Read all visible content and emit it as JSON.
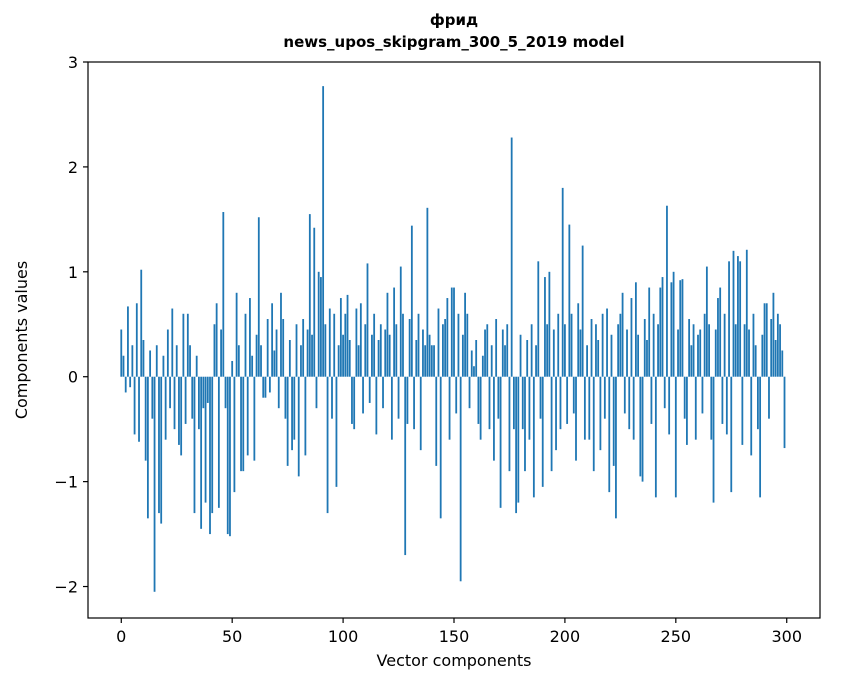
{
  "figure": {
    "background": "#ffffff",
    "frame_color": "#000000"
  },
  "chart_data": {
    "type": "bar",
    "title": "фрид",
    "subtitle": "news_upos_skipgram_300_5_2019 model",
    "xlabel": "Vector components",
    "ylabel": "Components values",
    "bar_color": "#1f77b4",
    "grid": false,
    "legend": null,
    "xlim": [
      -15,
      315
    ],
    "ylim": [
      -2.3,
      3.0
    ],
    "xticks": {
      "values": [
        0,
        50,
        100,
        150,
        200,
        250,
        300
      ],
      "labels": [
        "0",
        "50",
        "100",
        "150",
        "200",
        "250",
        "300"
      ]
    },
    "yticks": {
      "values": [
        -2,
        -1,
        0,
        1,
        2,
        3
      ],
      "labels": [
        "−2",
        "−1",
        "0",
        "1",
        "2",
        "3"
      ]
    },
    "x_start": 0,
    "values": [
      0.45,
      0.2,
      -0.15,
      0.67,
      -0.1,
      0.3,
      -0.55,
      0.7,
      -0.62,
      1.02,
      0.35,
      -0.8,
      -1.35,
      0.25,
      -0.4,
      -2.05,
      0.3,
      -1.3,
      -1.4,
      0.2,
      -0.6,
      0.45,
      -0.3,
      0.65,
      -0.5,
      0.3,
      -0.65,
      -0.75,
      0.6,
      -0.45,
      0.6,
      0.3,
      -0.4,
      -1.3,
      0.2,
      -0.5,
      -1.45,
      -0.3,
      -1.2,
      -0.25,
      -1.5,
      -1.3,
      0.5,
      0.7,
      -1.25,
      0.45,
      1.57,
      -0.3,
      -1.5,
      -1.52,
      0.15,
      -1.1,
      0.8,
      0.3,
      -0.9,
      -0.9,
      0.6,
      -0.75,
      0.75,
      0.2,
      -0.8,
      0.4,
      1.52,
      0.3,
      -0.2,
      -0.2,
      0.55,
      -0.15,
      0.7,
      0.25,
      0.45,
      -0.3,
      0.8,
      0.55,
      -0.4,
      -0.85,
      0.35,
      -0.7,
      -0.6,
      0.5,
      -0.95,
      0.3,
      0.55,
      -0.75,
      0.45,
      1.55,
      0.4,
      1.42,
      -0.3,
      1.0,
      0.95,
      2.77,
      0.5,
      -1.3,
      0.65,
      -0.4,
      0.6,
      -1.05,
      0.3,
      0.75,
      0.4,
      0.6,
      0.78,
      0.35,
      -0.45,
      -0.5,
      0.65,
      0.3,
      0.7,
      -0.35,
      0.5,
      1.08,
      -0.25,
      0.4,
      0.6,
      -0.55,
      0.35,
      0.5,
      -0.3,
      0.45,
      0.8,
      0.4,
      -0.6,
      0.85,
      0.5,
      -0.4,
      1.05,
      0.6,
      -1.7,
      -0.45,
      0.55,
      1.44,
      -0.5,
      0.35,
      0.6,
      -0.7,
      0.45,
      0.3,
      1.61,
      0.4,
      0.3,
      0.3,
      -0.85,
      0.65,
      -1.35,
      0.5,
      0.55,
      0.75,
      -0.6,
      0.85,
      0.85,
      -0.35,
      0.6,
      -1.95,
      0.4,
      0.8,
      0.6,
      -0.3,
      0.25,
      0.1,
      0.35,
      -0.45,
      -0.6,
      0.2,
      0.45,
      0.5,
      -0.5,
      0.3,
      -0.8,
      0.55,
      -0.4,
      -1.25,
      0.45,
      0.3,
      0.5,
      -0.9,
      2.28,
      -0.5,
      -1.3,
      -1.2,
      0.4,
      -0.5,
      -0.9,
      0.35,
      -0.6,
      0.5,
      -1.15,
      0.3,
      1.1,
      -0.4,
      -1.05,
      0.95,
      0.5,
      1.0,
      -0.9,
      0.45,
      -0.7,
      0.6,
      -0.5,
      1.8,
      0.5,
      -0.45,
      1.45,
      0.6,
      -0.35,
      -0.8,
      0.7,
      0.45,
      1.25,
      -0.6,
      0.3,
      -0.6,
      0.55,
      -0.9,
      0.5,
      0.35,
      -0.7,
      0.6,
      -0.4,
      0.65,
      -1.1,
      0.4,
      -0.85,
      -1.35,
      0.5,
      0.6,
      0.8,
      -0.35,
      0.45,
      -0.5,
      0.75,
      -0.6,
      0.9,
      0.4,
      -0.95,
      -1.0,
      0.55,
      0.35,
      0.85,
      -0.45,
      0.6,
      -1.15,
      0.5,
      0.85,
      0.95,
      -0.3,
      1.63,
      -0.55,
      0.9,
      1.0,
      -1.15,
      0.45,
      0.92,
      0.93,
      -0.4,
      -0.65,
      0.55,
      0.3,
      0.5,
      -0.6,
      0.4,
      0.45,
      -0.35,
      0.6,
      1.05,
      0.5,
      -0.6,
      -1.2,
      0.45,
      0.75,
      0.85,
      -0.45,
      0.6,
      -0.55,
      1.1,
      -1.1,
      1.2,
      0.5,
      1.15,
      1.1,
      -0.65,
      0.5,
      1.21,
      0.45,
      -0.75,
      0.6,
      0.3,
      -0.5,
      -1.15,
      0.4,
      0.7,
      0.7,
      -0.4,
      0.55,
      0.8,
      0.35,
      0.6,
      0.5,
      0.25,
      -0.68
    ]
  }
}
